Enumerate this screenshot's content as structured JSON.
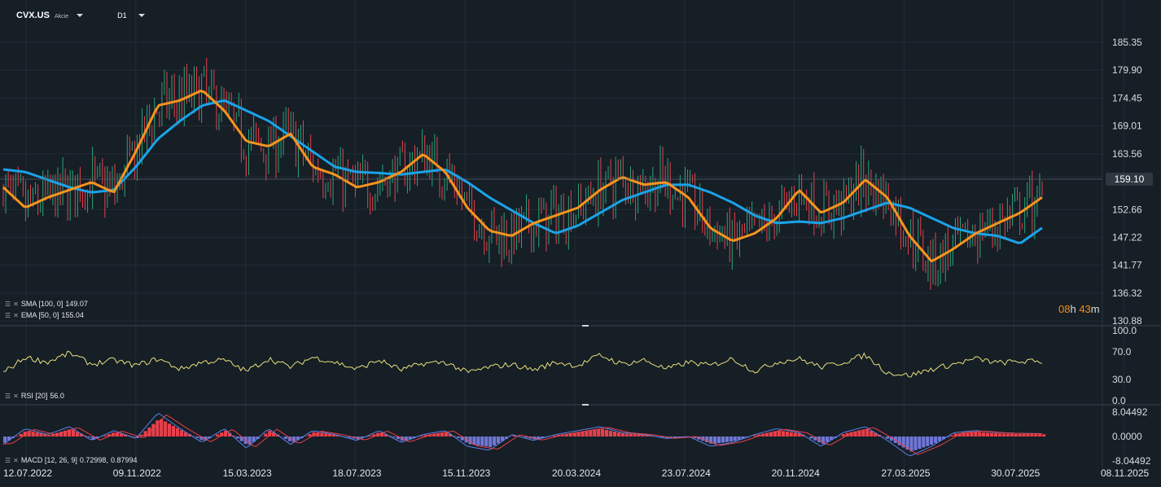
{
  "header": {
    "symbol": "CVX.US",
    "symbol_type": "Akcie",
    "timeframe": "D1"
  },
  "price_axis": {
    "ticks": [
      "185.35",
      "179.90",
      "174.45",
      "169.01",
      "163.56",
      "159.10",
      "152.66",
      "147.22",
      "141.77",
      "136.32",
      "130.88"
    ],
    "current_price": "159.10"
  },
  "countdown": {
    "hours": "08",
    "h_unit": "h",
    "minutes": "43",
    "m_unit": "m"
  },
  "indicators": {
    "sma": {
      "label": "SMA [100, 0]",
      "value": "149.07",
      "color": "#1aa3e8"
    },
    "ema": {
      "label": "EMA [50, 0]",
      "value": "155.04",
      "color": "#f7941d"
    },
    "rsi": {
      "label": "RSI [20]",
      "value": "56.0",
      "color": "#e6e07a",
      "ticks": [
        "100.0",
        "70.0",
        "30.0",
        "0.0"
      ]
    },
    "macd": {
      "label": "MACD [12, 26, 9]",
      "value1": "0.72998,",
      "value2": "0.87994",
      "ticks": [
        "8.04492",
        "0.0000",
        "-8.04492"
      ]
    }
  },
  "date_axis": [
    "12.07.2022",
    "09.11.2022",
    "15.03.2023",
    "18.07.2023",
    "15.11.2023",
    "20.03.2024",
    "23.07.2024",
    "20.11.2024",
    "27.03.2025",
    "30.07.2025",
    "08.11.2025"
  ],
  "chart_data": {
    "type": "line",
    "series": [
      {
        "name": "SMA [100, 0]",
        "key": "sma",
        "values": [
          160.5,
          160.0,
          158.5,
          157.0,
          156.0,
          156.5,
          161.0,
          166.5,
          170.0,
          173.0,
          174.0,
          172.0,
          170.0,
          167.0,
          164.0,
          161.0,
          160.0,
          159.8,
          159.5,
          160.0,
          160.5,
          158.0,
          155.0,
          152.5,
          150.0,
          148.0,
          149.5,
          152.0,
          154.5,
          156.0,
          157.5,
          157.5,
          156.0,
          154.0,
          151.5,
          150.0,
          150.3,
          150.0,
          151.0,
          152.5,
          154.0,
          153.0,
          151.0,
          149.0,
          148.0,
          147.5,
          146.0,
          149.07
        ]
      },
      {
        "name": "EMA [50, 0]",
        "key": "ema",
        "values": [
          157.0,
          153.0,
          155.0,
          156.5,
          158.0,
          156.0,
          164.0,
          173.0,
          174.0,
          176.0,
          172.0,
          166.0,
          165.0,
          167.5,
          161.0,
          159.5,
          157.0,
          158.0,
          160.0,
          163.5,
          160.0,
          153.0,
          148.5,
          147.5,
          150.0,
          151.5,
          153.0,
          156.5,
          159.0,
          157.5,
          158.0,
          155.0,
          149.0,
          146.5,
          148.0,
          151.0,
          156.5,
          152.0,
          154.0,
          158.5,
          155.0,
          147.5,
          142.5,
          145.0,
          148.0,
          150.0,
          152.0,
          155.04
        ]
      },
      {
        "name": "RSI [20]",
        "key": "rsi",
        "values": [
          40,
          62,
          55,
          68,
          52,
          58,
          50,
          60,
          45,
          55,
          58,
          42,
          60,
          48,
          62,
          55,
          45,
          58,
          44,
          53,
          55,
          40,
          48,
          52,
          44,
          55,
          50,
          65,
          52,
          58,
          45,
          55,
          50,
          60,
          42,
          55,
          60,
          48,
          55,
          65,
          40,
          36,
          45,
          52,
          60,
          54,
          56,
          56.0
        ]
      },
      {
        "name": "MACD [12, 26, 9]",
        "key": "macd",
        "values": [
          -2.0,
          2.0,
          0.5,
          2.5,
          -1.0,
          1.5,
          -0.5,
          6.0,
          2.0,
          -1.5,
          2.0,
          -3.0,
          2.0,
          -2.0,
          1.5,
          0.5,
          -1.0,
          1.5,
          -1.5,
          0.5,
          1.5,
          -2.5,
          -3.5,
          0.5,
          -1.0,
          0.5,
          1.5,
          2.5,
          1.0,
          0.5,
          -0.5,
          0.0,
          -2.5,
          -1.5,
          0.5,
          2.0,
          1.0,
          -2.5,
          1.0,
          2.5,
          -1.0,
          -5.0,
          -2.5,
          1.0,
          1.5,
          1.0,
          0.8,
          0.73
        ]
      }
    ],
    "ylim": [
      130.88,
      185.35
    ],
    "rsi_ylim": [
      0,
      100
    ],
    "macd_ylim": [
      -8.04492,
      8.04492
    ],
    "x_tick_labels": [
      "12.07.2022",
      "09.11.2022",
      "15.03.2023",
      "18.07.2023",
      "15.11.2023",
      "20.03.2024",
      "23.07.2024",
      "20.11.2024",
      "27.03.2025",
      "30.07.2025",
      "08.11.2025"
    ]
  },
  "colors": {
    "background": "#161e26",
    "bull": "#26a67a",
    "bear": "#e8404b",
    "grid": "#232c36",
    "macd_pos": "#e8404b",
    "macd_neg": "#6f77d6"
  }
}
